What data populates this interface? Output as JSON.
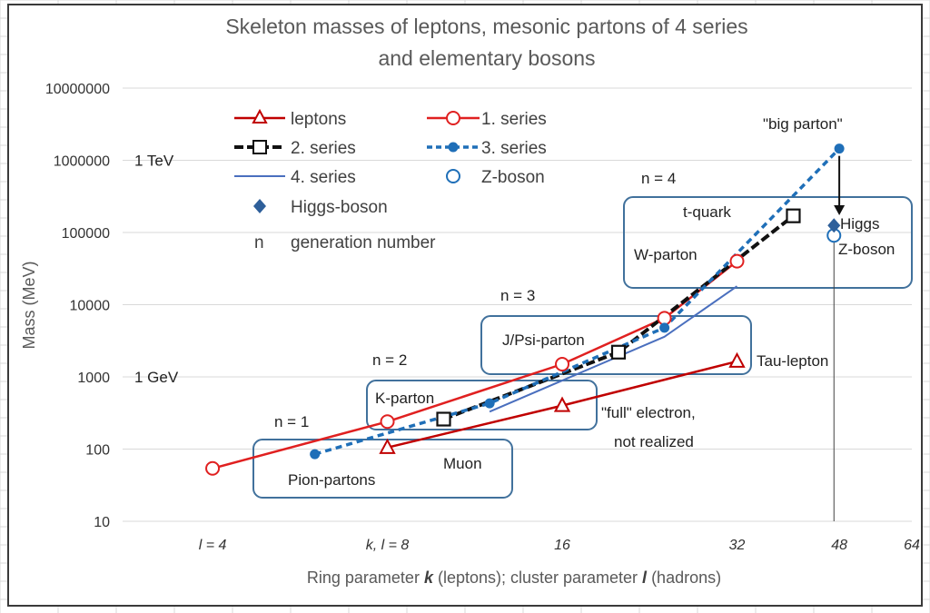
{
  "chart_data": {
    "type": "line",
    "title_lines": [
      "Skeleton masses of leptons, mesonic partons of 4 series",
      "and elementary bosons"
    ],
    "ylabel": "Mass (MeV)",
    "xlabel": {
      "parts": [
        {
          "text": "Ring parameter ",
          "style": "normal"
        },
        {
          "text": "k",
          "style": "bold-italic"
        },
        {
          "text": " (leptons);   cluster parameter ",
          "style": "normal"
        },
        {
          "text": "l",
          "style": "bold-italic"
        },
        {
          "text": " (hadrons)",
          "style": "normal"
        }
      ]
    },
    "x_scale": "log2",
    "y_scale": "log10",
    "xlim": [
      2.8,
      64
    ],
    "ylim": [
      10,
      10000000
    ],
    "y_ticks": [
      {
        "value": 10,
        "label": "10"
      },
      {
        "value": 100,
        "label": "100"
      },
      {
        "value": 1000,
        "label": "1000"
      },
      {
        "value": 10000,
        "label": "10000"
      },
      {
        "value": 100000,
        "label": "100000"
      },
      {
        "value": 1000000,
        "label": "1000000"
      },
      {
        "value": 10000000,
        "label": "10000000"
      }
    ],
    "x_ticks": [
      {
        "value": 4,
        "label": "l = 4"
      },
      {
        "value": 8,
        "label": "k, l = 8"
      },
      {
        "value": 16,
        "label": "16"
      },
      {
        "value": 32,
        "label": "32"
      },
      {
        "value": 48,
        "label": "48"
      },
      {
        "value": 64,
        "label": "64"
      }
    ],
    "grid": "horizontal",
    "legend_position": "top-left",
    "series": [
      {
        "name": "leptons",
        "color": "#c00000",
        "line": "solid",
        "marker": "open-triangle",
        "points": [
          [
            8,
            105
          ],
          [
            16,
            400
          ],
          [
            32,
            1640
          ]
        ]
      },
      {
        "name": "1. series",
        "color": "#e02020",
        "line": "solid",
        "marker": "open-circle",
        "points": [
          [
            4,
            54
          ],
          [
            8,
            240
          ],
          [
            16,
            1500
          ],
          [
            24,
            6500
          ],
          [
            32,
            40000
          ]
        ]
      },
      {
        "name": "2. series",
        "color": "#111111",
        "line": "dashed-bold",
        "marker": "open-square",
        "points": [
          [
            10,
            260
          ],
          [
            20,
            2200
          ],
          [
            40,
            170000
          ]
        ]
      },
      {
        "name": "3. series",
        "color": "#1f6fb8",
        "line": "dashed",
        "marker": "filled-circle",
        "points": [
          [
            6,
            85
          ],
          [
            12,
            430
          ],
          [
            24,
            4800
          ],
          [
            48,
            1450000
          ]
        ]
      },
      {
        "name": "4. series",
        "color": "#4a6fbe",
        "line": "solid-thin",
        "marker": "none",
        "points": [
          [
            12,
            330
          ],
          [
            24,
            3600
          ],
          [
            32,
            18000
          ]
        ]
      },
      {
        "name": "Z-boson",
        "color": "#1f6fb8",
        "line": "none",
        "marker": "open-circle",
        "points": [
          [
            47,
            91000
          ]
        ]
      },
      {
        "name": "Higgs-boson",
        "color": "#2e5f9a",
        "line": "none",
        "marker": "filled-diamond",
        "points": [
          [
            47,
            125000
          ]
        ]
      }
    ],
    "legend_extra": {
      "symbol": "n",
      "text": "generation number"
    },
    "left_labels": [
      {
        "text": "1 TeV",
        "y": 1000000
      },
      {
        "text": "1 GeV",
        "y": 1000
      }
    ],
    "annotations": [
      {
        "text": "n = 1"
      },
      {
        "text": "n = 2"
      },
      {
        "text": "n = 3"
      },
      {
        "text": "n = 4"
      },
      {
        "text": "Pion-partons"
      },
      {
        "text": "Muon"
      },
      {
        "text": "K-parton"
      },
      {
        "text": "\"full\" electron,"
      },
      {
        "text": "not realized"
      },
      {
        "text": "J/Psi-parton"
      },
      {
        "text": "Tau-lepton"
      },
      {
        "text": "W-parton"
      },
      {
        "text": "t-quark"
      },
      {
        "text": "\"big parton\""
      },
      {
        "text": "Higgs"
      },
      {
        "text": "Z-boson"
      }
    ]
  }
}
